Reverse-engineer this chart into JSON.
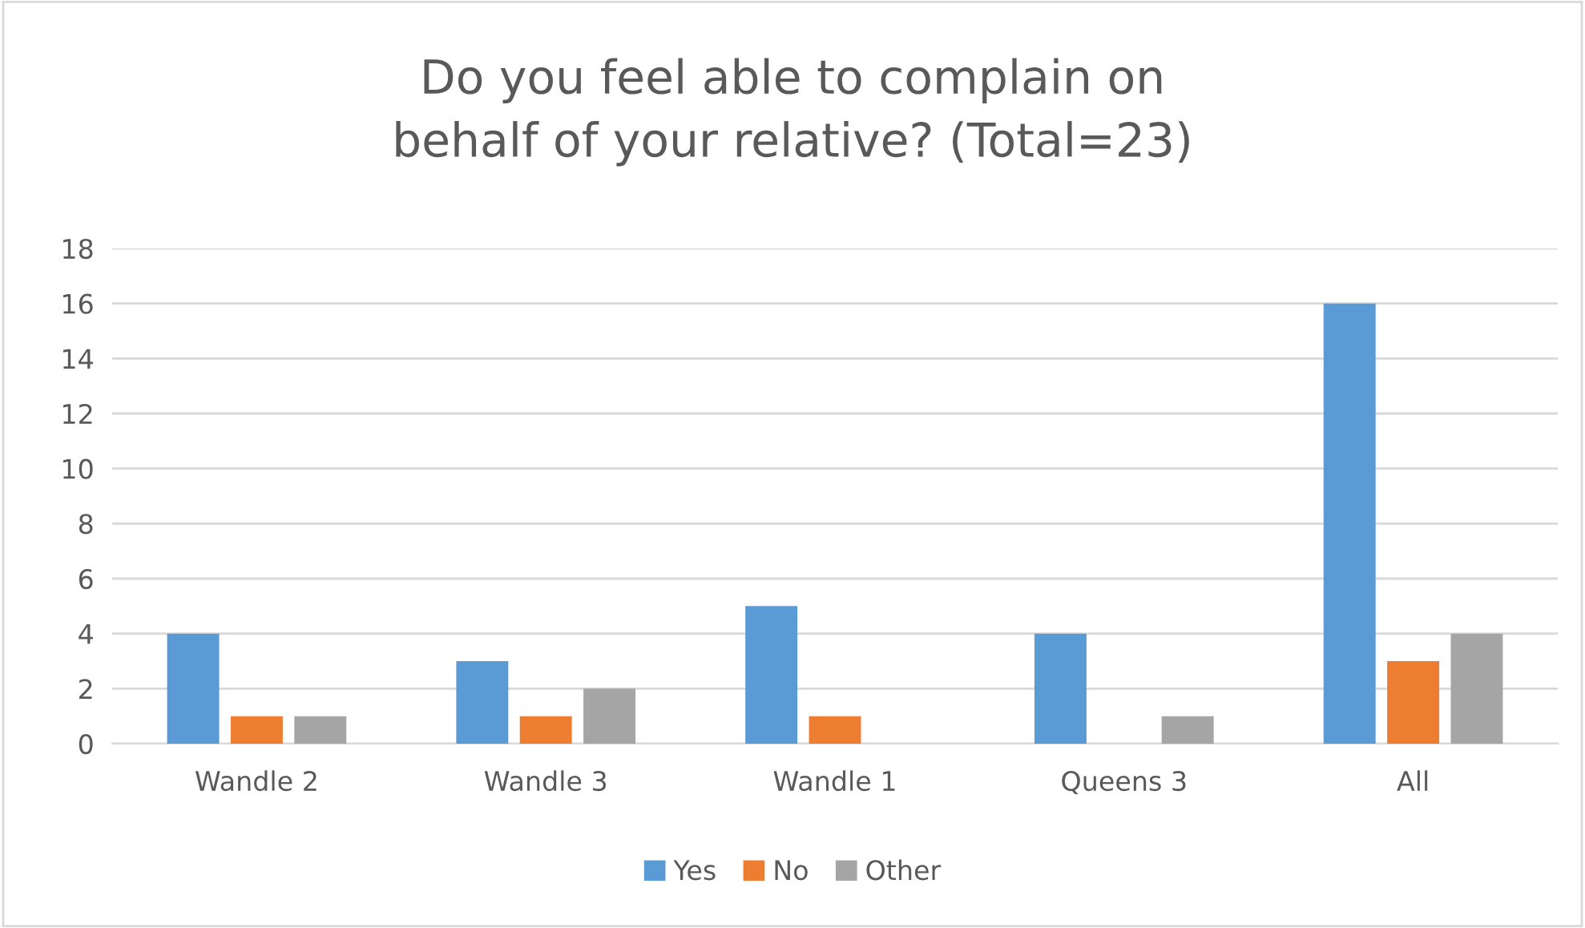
{
  "chart_data": {
    "type": "bar",
    "title": "Do you feel able to complain on\nbehalf of your relative? (Total=23)",
    "categories": [
      "Wandle 2",
      "Wandle 3",
      "Wandle 1",
      "Queens 3",
      "All"
    ],
    "series": [
      {
        "name": "Yes",
        "color": "#5b9bd5",
        "values": [
          4,
          3,
          5,
          4,
          16
        ]
      },
      {
        "name": "No",
        "color": "#ed7d31",
        "values": [
          1,
          1,
          1,
          0,
          3
        ]
      },
      {
        "name": "Other",
        "color": "#a5a5a5",
        "values": [
          1,
          2,
          0,
          1,
          4
        ]
      }
    ],
    "ylim": [
      0,
      18
    ],
    "yticks": [
      0,
      2,
      4,
      6,
      8,
      10,
      12,
      14,
      16,
      18
    ],
    "grid": "y",
    "legend": "bottom"
  }
}
